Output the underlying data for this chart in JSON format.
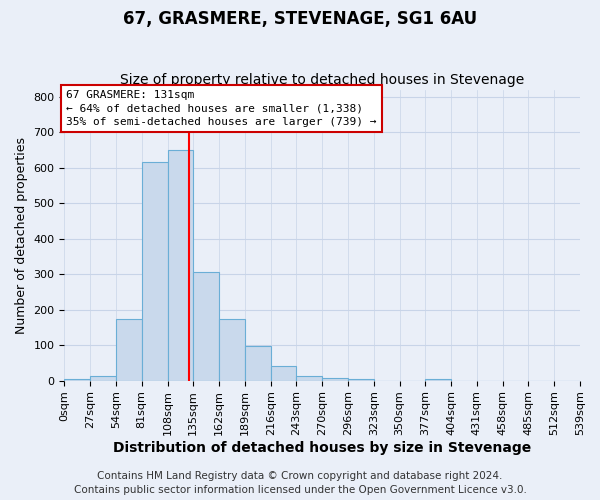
{
  "title": "67, GRASMERE, STEVENAGE, SG1 6AU",
  "subtitle": "Size of property relative to detached houses in Stevenage",
  "xlabel": "Distribution of detached houses by size in Stevenage",
  "ylabel": "Number of detached properties",
  "bin_edges": [
    0,
    27,
    54,
    81,
    108,
    135,
    162,
    189,
    216,
    243,
    270,
    297,
    324,
    351,
    378,
    405,
    432,
    459,
    486,
    513,
    540
  ],
  "bin_heights": [
    5,
    12,
    175,
    615,
    650,
    305,
    175,
    98,
    42,
    12,
    8,
    5,
    0,
    0,
    5,
    0,
    0,
    0,
    0,
    0
  ],
  "bar_facecolor": "#c9d9ec",
  "bar_edgecolor": "#6aaed6",
  "bar_linewidth": 0.8,
  "grid_color": "#c8d4e8",
  "background_color": "#eaeff8",
  "red_line_x": 131,
  "ylim": [
    0,
    820
  ],
  "yticks": [
    0,
    100,
    200,
    300,
    400,
    500,
    600,
    700,
    800
  ],
  "xtick_labels": [
    "0sqm",
    "27sqm",
    "54sqm",
    "81sqm",
    "108sqm",
    "135sqm",
    "162sqm",
    "189sqm",
    "216sqm",
    "243sqm",
    "270sqm",
    "296sqm",
    "323sqm",
    "350sqm",
    "377sqm",
    "404sqm",
    "431sqm",
    "458sqm",
    "485sqm",
    "512sqm",
    "539sqm"
  ],
  "annotation_line1": "67 GRASMERE: 131sqm",
  "annotation_line2": "← 64% of detached houses are smaller (1,338)",
  "annotation_line3": "35% of semi-detached houses are larger (739) →",
  "annotation_box_facecolor": "#ffffff",
  "annotation_box_edgecolor": "#cc0000",
  "footer_text1": "Contains HM Land Registry data © Crown copyright and database right 2024.",
  "footer_text2": "Contains public sector information licensed under the Open Government Licence v3.0.",
  "title_fontsize": 12,
  "subtitle_fontsize": 10,
  "xlabel_fontsize": 10,
  "ylabel_fontsize": 9,
  "tick_fontsize": 8,
  "annotation_fontsize": 8,
  "footer_fontsize": 7.5
}
